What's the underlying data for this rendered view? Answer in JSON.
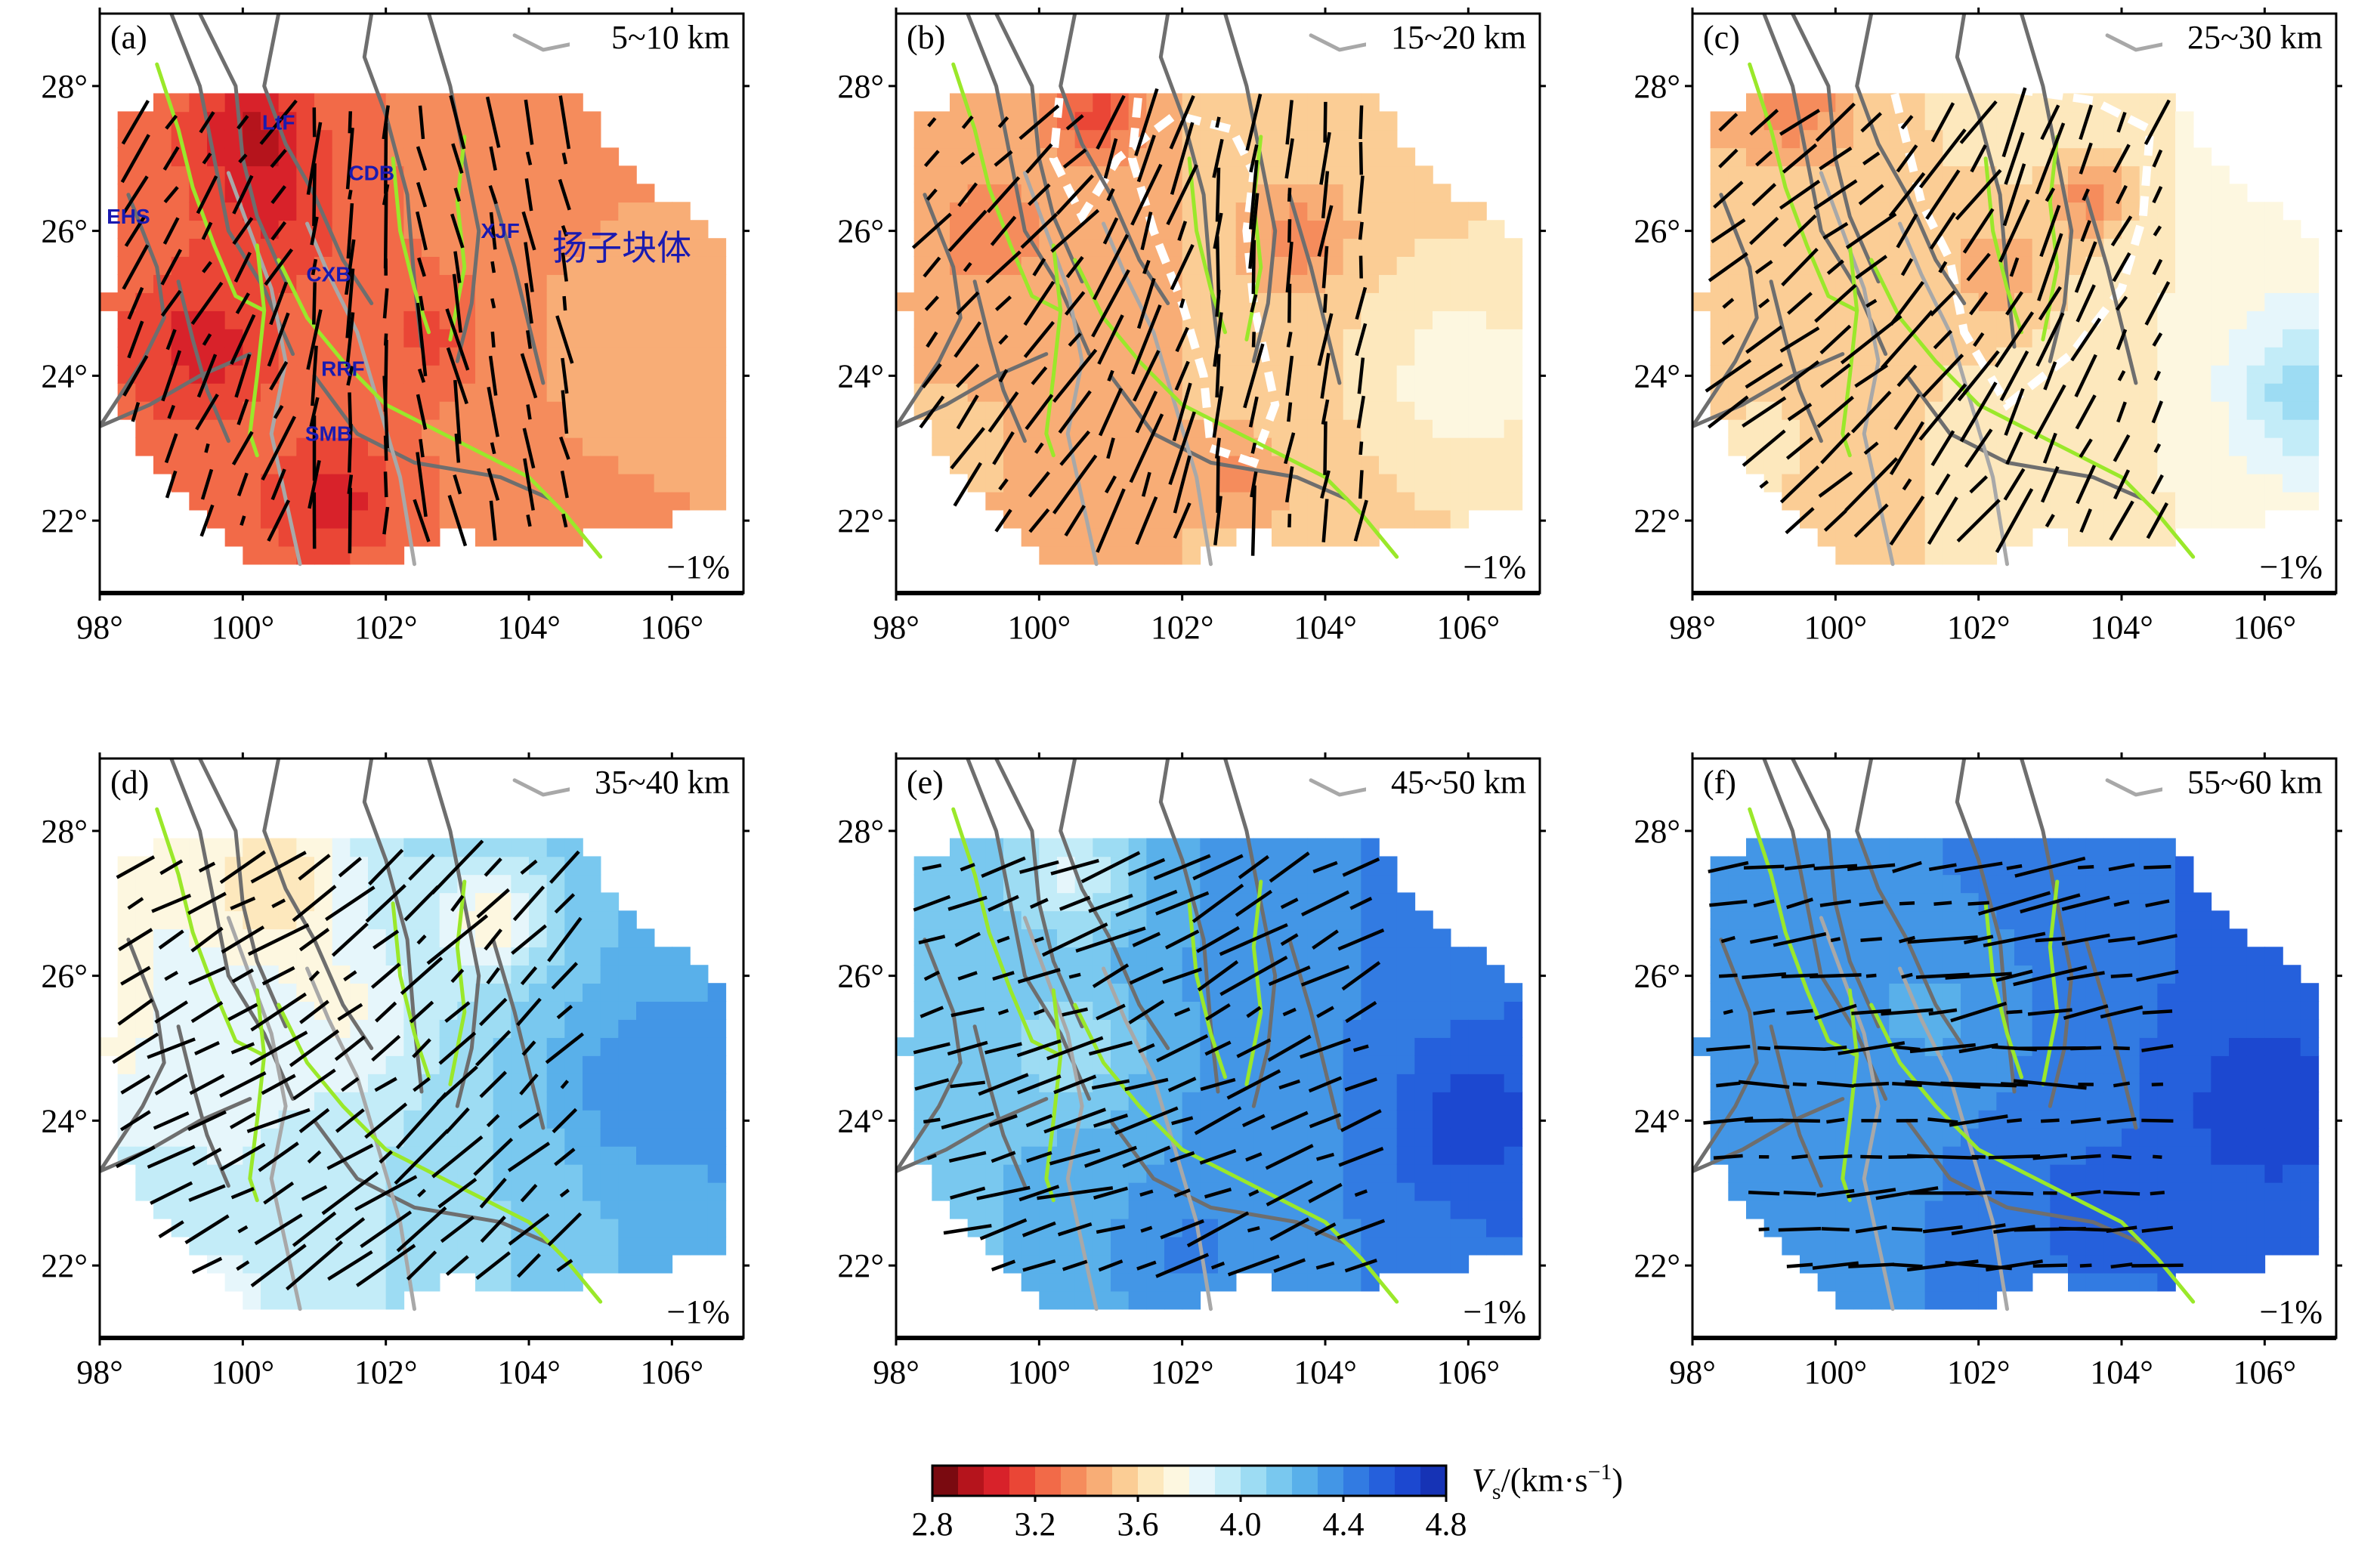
{
  "chart_data": {
    "type": "heatmap",
    "description_units": "Vs in km/s; anisotropy bars scaled to reference -1%",
    "x_ticks": [
      "98°",
      "100°",
      "102°",
      "104°",
      "106°"
    ],
    "y_ticks": [
      "22°",
      "24°",
      "26°",
      "28°"
    ],
    "xlim": [
      98,
      107
    ],
    "ylim": [
      21,
      29
    ],
    "panels": [
      {
        "letter": "(a)",
        "depth": "5~10 km",
        "scale": "−1%",
        "mean_vs": 3.35
      },
      {
        "letter": "(b)",
        "depth": "15~20 km",
        "scale": "−1%",
        "mean_vs": 3.5
      },
      {
        "letter": "(c)",
        "depth": "25~30 km",
        "scale": "−1%",
        "mean_vs": 3.65
      },
      {
        "letter": "(d)",
        "depth": "35~40 km",
        "scale": "−1%",
        "mean_vs": 3.95
      },
      {
        "letter": "(e)",
        "depth": "45~50 km",
        "scale": "−1%",
        "mean_vs": 4.3
      },
      {
        "letter": "(f)",
        "depth": "55~60 km",
        "scale": "−1%",
        "mean_vs": 4.45
      }
    ],
    "map_labels": [
      {
        "text": "LtF",
        "lon": 100.5,
        "lat": 27.4
      },
      {
        "text": "CDB",
        "lon": 101.8,
        "lat": 26.7
      },
      {
        "text": "EHS",
        "lon": 98.4,
        "lat": 26.1
      },
      {
        "text": "XJF",
        "lon": 103.6,
        "lat": 25.9
      },
      {
        "text": "CXB",
        "lon": 101.2,
        "lat": 25.3
      },
      {
        "text": "RRF",
        "lon": 101.4,
        "lat": 24.0
      },
      {
        "text": "SMB",
        "lon": 101.2,
        "lat": 23.1
      }
    ],
    "block_label": {
      "text": "扬子块体",
      "lon": 105.3,
      "lat": 25.6
    },
    "colorbar": {
      "ticks": [
        "2.8",
        "3.2",
        "3.6",
        "4.0",
        "4.4",
        "4.8"
      ],
      "range": [
        2.8,
        4.8
      ],
      "title_var": "V",
      "title_sub": "s",
      "title_unit": "/(km·s",
      "title_sup": "−1",
      "title_end": ")"
    }
  },
  "colors": {
    "palette": [
      "#7a0a10",
      "#b5141c",
      "#d8222a",
      "#ea4636",
      "#f26a48",
      "#f58c5c",
      "#f8ad76",
      "#fbcd95",
      "#fde8bd",
      "#fdf7e0",
      "#e6f6fb",
      "#c3ecf8",
      "#9ddcf3",
      "#79c8ef",
      "#59b0ea",
      "#4396e6",
      "#327be2",
      "#2560dc",
      "#1c48d0",
      "#1633b5"
    ],
    "fault_dark": "#6e6e6e",
    "fault_light": "#a8a8a8",
    "fault_green": "#9ae82a"
  }
}
